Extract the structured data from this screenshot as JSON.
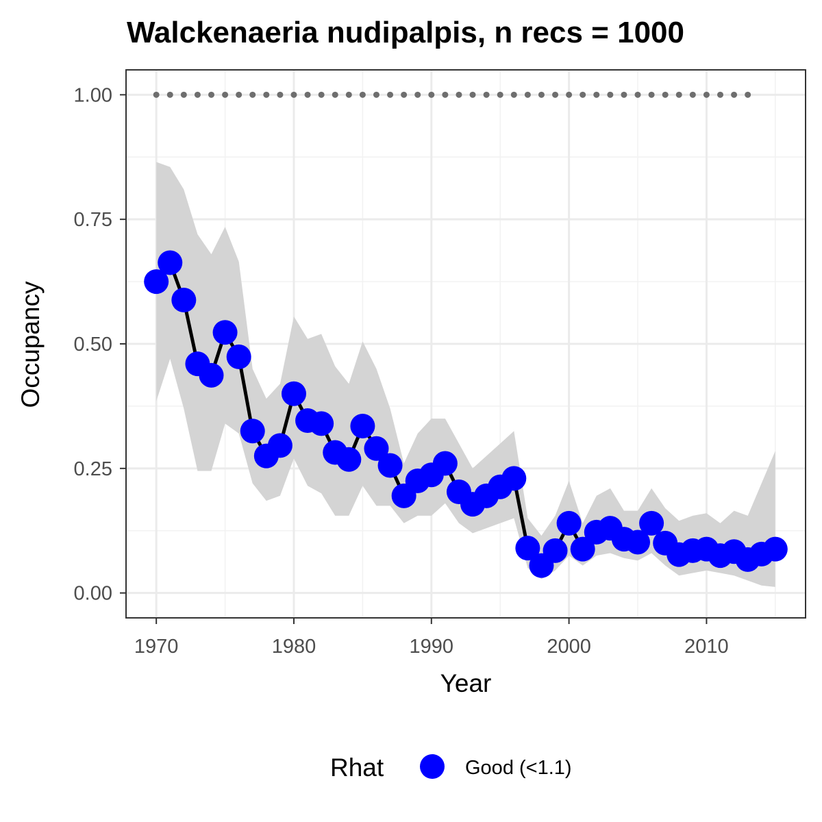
{
  "chart_data": {
    "type": "line",
    "title": "Walckenaeria nudipalpis, n recs = 1000",
    "xlabel": "Year",
    "ylabel": "Occupancy",
    "xlim": [
      1967.8,
      2017.2
    ],
    "ylim": [
      -0.05,
      1.05
    ],
    "x_ticks": [
      1970,
      1980,
      1990,
      2000,
      2010
    ],
    "x_tick_labels": [
      "1970",
      "1980",
      "1990",
      "2000",
      "2010"
    ],
    "y_ticks": [
      0,
      0.25,
      0.5,
      0.75,
      1.0
    ],
    "y_tick_labels": [
      "0.00",
      "0.25",
      "0.50",
      "0.75",
      "1.00"
    ],
    "grid": true,
    "legend": {
      "title": "Rhat",
      "position": "bottom",
      "entries": [
        {
          "label": "Good (<1.1)",
          "color": "#0000ff"
        }
      ]
    },
    "colors": {
      "points": "#0000ff",
      "line": "#000000",
      "ribbon": "#d4d4d4",
      "reference": "#6e6e6e"
    },
    "reference_line": {
      "y": 1.0,
      "x": [
        1970,
        1971,
        1972,
        1973,
        1974,
        1975,
        1976,
        1977,
        1978,
        1979,
        1980,
        1981,
        1982,
        1983,
        1984,
        1985,
        1986,
        1987,
        1988,
        1989,
        1990,
        1991,
        1992,
        1993,
        1994,
        1995,
        1996,
        1997,
        1998,
        1999,
        2000,
        2001,
        2002,
        2003,
        2004,
        2005,
        2006,
        2007,
        2008,
        2009,
        2010,
        2011,
        2012,
        2013
      ]
    },
    "series": [
      {
        "x": [
          1970,
          1971,
          1972,
          1973,
          1974,
          1975,
          1976,
          1977,
          1978,
          1979,
          1980,
          1981,
          1982,
          1983,
          1984,
          1985,
          1986,
          1987,
          1988,
          1989,
          1990,
          1991,
          1992,
          1993,
          1994,
          1995,
          1996,
          1997,
          1998,
          1999,
          2000,
          2001,
          2002,
          2003,
          2004,
          2005,
          2006,
          2007,
          2008,
          2009,
          2010,
          2011,
          2012,
          2013,
          2014,
          2015
        ],
        "y": [
          0.625,
          0.663,
          0.588,
          0.46,
          0.437,
          0.523,
          0.474,
          0.325,
          0.275,
          0.296,
          0.4,
          0.346,
          0.34,
          0.282,
          0.268,
          0.335,
          0.29,
          0.256,
          0.195,
          0.225,
          0.237,
          0.26,
          0.203,
          0.178,
          0.195,
          0.213,
          0.23,
          0.09,
          0.055,
          0.085,
          0.14,
          0.088,
          0.122,
          0.13,
          0.108,
          0.102,
          0.14,
          0.1,
          0.077,
          0.085,
          0.088,
          0.075,
          0.083,
          0.067,
          0.078,
          0.088
        ],
        "lower": [
          0.385,
          0.47,
          0.37,
          0.245,
          0.245,
          0.34,
          0.32,
          0.22,
          0.185,
          0.195,
          0.27,
          0.215,
          0.2,
          0.155,
          0.155,
          0.215,
          0.175,
          0.175,
          0.14,
          0.155,
          0.155,
          0.18,
          0.14,
          0.12,
          0.13,
          0.14,
          0.15,
          0.05,
          0.028,
          0.045,
          0.075,
          0.055,
          0.075,
          0.08,
          0.07,
          0.065,
          0.08,
          0.055,
          0.035,
          0.04,
          0.045,
          0.04,
          0.035,
          0.025,
          0.015,
          0.012
        ],
        "upper": [
          0.865,
          0.855,
          0.81,
          0.72,
          0.68,
          0.735,
          0.665,
          0.45,
          0.39,
          0.42,
          0.555,
          0.51,
          0.52,
          0.455,
          0.42,
          0.505,
          0.45,
          0.37,
          0.26,
          0.32,
          0.35,
          0.35,
          0.3,
          0.25,
          0.275,
          0.3,
          0.325,
          0.15,
          0.115,
          0.155,
          0.225,
          0.14,
          0.195,
          0.21,
          0.165,
          0.165,
          0.21,
          0.17,
          0.145,
          0.155,
          0.16,
          0.14,
          0.165,
          0.155,
          0.22,
          0.285
        ]
      }
    ]
  }
}
